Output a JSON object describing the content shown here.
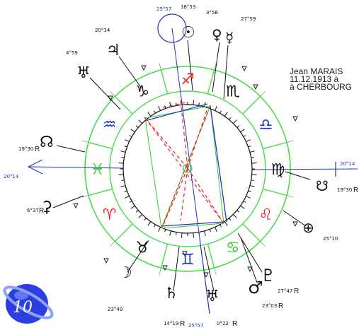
{
  "chart_info": {
    "name": "Jean MARAIS",
    "birth": "11.12.1913 à",
    "place": "à CHERBOURG",
    "page_number": "10"
  },
  "colors": {
    "zodiac_ring": "#44dd44",
    "fire_signs": "#ff2020",
    "water_earth_signs": "#111111",
    "air_signs": "#1a2ecc",
    "axis_blue": "#2233bb",
    "aspect_red": "#ee2222",
    "aspect_green": "#33cc33",
    "aspect_blue": "#2233cc",
    "logo_blue": "#2b3fe0"
  },
  "signs": [
    {
      "id": "sagittarius",
      "glyph": "♐",
      "color": "#ff2020"
    },
    {
      "id": "scorpio",
      "glyph": "♏",
      "color": "#111111"
    },
    {
      "id": "libra",
      "glyph": "♎",
      "color": "#1a2ecc"
    },
    {
      "id": "virgo",
      "glyph": "♍",
      "color": "#111111"
    },
    {
      "id": "leo",
      "glyph": "♌",
      "color": "#ff2020"
    },
    {
      "id": "cancer",
      "glyph": "♋",
      "color": "#33cc33"
    },
    {
      "id": "gemini",
      "glyph": "♊",
      "color": "#1a2ecc"
    },
    {
      "id": "taurus",
      "glyph": "♉",
      "color": "#111111"
    },
    {
      "id": "aries",
      "glyph": "♈",
      "color": "#ff2020"
    },
    {
      "id": "pisces",
      "glyph": "♓",
      "color": "#33cc33"
    },
    {
      "id": "aquarius",
      "glyph": "♒",
      "color": "#1a2ecc"
    },
    {
      "id": "capricorn",
      "glyph": "♑",
      "color": "#111111"
    }
  ],
  "planets": [
    {
      "id": "sun",
      "glyph": "☉",
      "degree": "18°53",
      "retro": ""
    },
    {
      "id": "venus",
      "glyph": "♀",
      "degree": "3°58",
      "retro": ""
    },
    {
      "id": "mercury",
      "glyph": "☿",
      "degree": "27°59",
      "retro": ""
    },
    {
      "id": "jupiter",
      "glyph": "♃",
      "degree": "20°34",
      "retro": ""
    },
    {
      "id": "uranus",
      "glyph": "♅",
      "degree": "4°59",
      "retro": ""
    },
    {
      "id": "north_node",
      "glyph": "☊",
      "degree": "19°30",
      "retro": "R"
    },
    {
      "id": "ceres",
      "glyph": "⚳",
      "degree": "6°37",
      "retro": "R"
    },
    {
      "id": "moon",
      "glyph": "☽",
      "degree": "23°49",
      "retro": ""
    },
    {
      "id": "saturn",
      "glyph": "♄",
      "degree": "14°19",
      "retro": "R"
    },
    {
      "id": "desc_planet",
      "glyph": "♅",
      "degree": "0°22",
      "retro": "R"
    },
    {
      "id": "pluto",
      "glyph": "♇",
      "degree": "23°03",
      "retro": "R"
    },
    {
      "id": "mars",
      "glyph": "♂",
      "degree": "27°47",
      "retro": "R"
    },
    {
      "id": "fortune",
      "glyph": "⊕",
      "degree": "25°10",
      "retro": ""
    },
    {
      "id": "south_node",
      "glyph": "☋",
      "degree": "19°30",
      "retro": "R"
    }
  ],
  "axes": {
    "mc_degree": "25°57",
    "ic_degree": "25°57",
    "asc_degree": "20°14",
    "desc_degree": "20°14"
  }
}
